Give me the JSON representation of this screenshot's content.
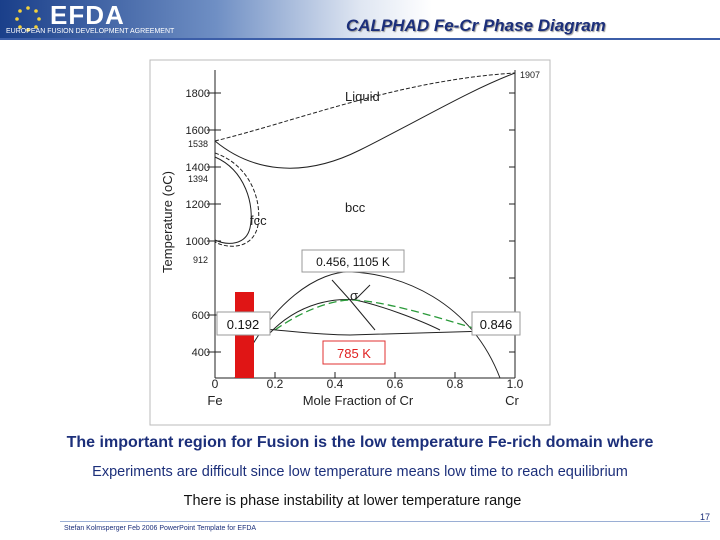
{
  "header": {
    "logo": "EFDA",
    "logo_subtitle": "EUROPEAN FUSION DEVELOPMENT AGREEMENT",
    "title": "CALPHAD Fe-Cr Phase Diagram"
  },
  "diagram": {
    "y_label": "Temperature (oC)",
    "x_label": "Mole Fraction of Cr",
    "y_ticks": [
      "1800",
      "1600",
      "1538",
      "1400",
      "1394",
      "1200",
      "1000",
      "912",
      "600",
      "400"
    ],
    "x_ticks": [
      "0",
      "0.2",
      "0.4",
      "0.6",
      "0.8",
      "1.0"
    ],
    "x_ends": [
      "Fe",
      "Cr"
    ],
    "top_value": "1907",
    "regions": [
      "Liquid",
      "bcc",
      "fcc",
      "σ"
    ],
    "annotations": [
      "0.456, 1105 K",
      "0.192",
      "0.846",
      "785 K"
    ]
  },
  "body": [
    "The important region for Fusion is the low temperature Fe-rich domain where",
    "Experiments are  difficult since low temperature means low time to reach equilibrium",
    "There is phase instability at lower temperature range"
  ],
  "footer": {
    "credit": "Stefan Kolmsperger Feb 2006 PowerPoint Template for EFDA",
    "page": "17"
  }
}
